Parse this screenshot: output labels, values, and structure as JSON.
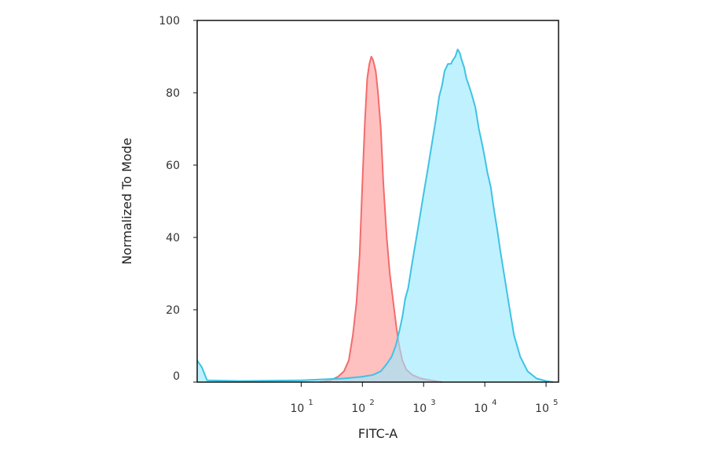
{
  "chart_data": {
    "type": "area",
    "xlabel": "FITC-A",
    "ylabel": "Normalized To Mode",
    "x_scale": "log",
    "xlim": [
      0.2,
      160000
    ],
    "ylim": [
      0,
      100
    ],
    "x_ticks": [
      {
        "base": "10",
        "exp": "1",
        "value": 10
      },
      {
        "base": "10",
        "exp": "2",
        "value": 100
      },
      {
        "base": "10",
        "exp": "3",
        "value": 1000
      },
      {
        "base": "10",
        "exp": "4",
        "value": 10000
      },
      {
        "base": "10",
        "exp": "5",
        "value": 100000
      }
    ],
    "y_ticks": [
      "0",
      "20",
      "40",
      "60",
      "80",
      "100"
    ],
    "grid": false,
    "series": [
      {
        "color": "#f46b6b",
        "fill": "#ff9a9a",
        "points": [
          [
            20,
            0
          ],
          [
            30,
            0.5
          ],
          [
            40,
            1.5
          ],
          [
            50,
            3
          ],
          [
            60,
            6
          ],
          [
            70,
            13
          ],
          [
            80,
            22
          ],
          [
            90,
            35
          ],
          [
            100,
            55
          ],
          [
            110,
            72
          ],
          [
            120,
            84
          ],
          [
            130,
            88
          ],
          [
            140,
            90
          ],
          [
            150,
            89
          ],
          [
            165,
            86
          ],
          [
            180,
            80
          ],
          [
            200,
            70
          ],
          [
            220,
            55
          ],
          [
            250,
            40
          ],
          [
            280,
            30
          ],
          [
            320,
            22
          ],
          [
            360,
            15
          ],
          [
            400,
            10
          ],
          [
            450,
            6
          ],
          [
            520,
            3.5
          ],
          [
            650,
            2
          ],
          [
            900,
            1
          ],
          [
            1300,
            0.5
          ],
          [
            2000,
            0
          ]
        ]
      },
      {
        "color": "#3ec3e3",
        "fill": "#9ae9ff",
        "points": [
          [
            0.2,
            6
          ],
          [
            0.24,
            4
          ],
          [
            0.29,
            0.5
          ],
          [
            1,
            0.3
          ],
          [
            10,
            0.5
          ],
          [
            50,
            1
          ],
          [
            100,
            1.5
          ],
          [
            150,
            2
          ],
          [
            200,
            3
          ],
          [
            250,
            5
          ],
          [
            300,
            7
          ],
          [
            350,
            10
          ],
          [
            400,
            14
          ],
          [
            450,
            18
          ],
          [
            500,
            23
          ],
          [
            560,
            26
          ],
          [
            650,
            33
          ],
          [
            800,
            42
          ],
          [
            1000,
            52
          ],
          [
            1200,
            60
          ],
          [
            1400,
            67
          ],
          [
            1600,
            73
          ],
          [
            1800,
            79
          ],
          [
            2000,
            82
          ],
          [
            2200,
            86
          ],
          [
            2500,
            88
          ],
          [
            2800,
            88
          ],
          [
            3000,
            89
          ],
          [
            3300,
            90
          ],
          [
            3600,
            92
          ],
          [
            3900,
            91
          ],
          [
            4200,
            89
          ],
          [
            4600,
            87
          ],
          [
            5000,
            84
          ],
          [
            5500,
            82
          ],
          [
            6000,
            80
          ],
          [
            7000,
            76
          ],
          [
            8000,
            70
          ],
          [
            9000,
            66
          ],
          [
            10000,
            62
          ],
          [
            11000,
            58
          ],
          [
            12500,
            54
          ],
          [
            14000,
            48
          ],
          [
            16000,
            42
          ],
          [
            18000,
            36
          ],
          [
            21000,
            29
          ],
          [
            25000,
            21
          ],
          [
            30000,
            13
          ],
          [
            38000,
            7
          ],
          [
            50000,
            3
          ],
          [
            70000,
            1
          ],
          [
            100000,
            0.3
          ],
          [
            130000,
            0
          ]
        ]
      }
    ]
  }
}
